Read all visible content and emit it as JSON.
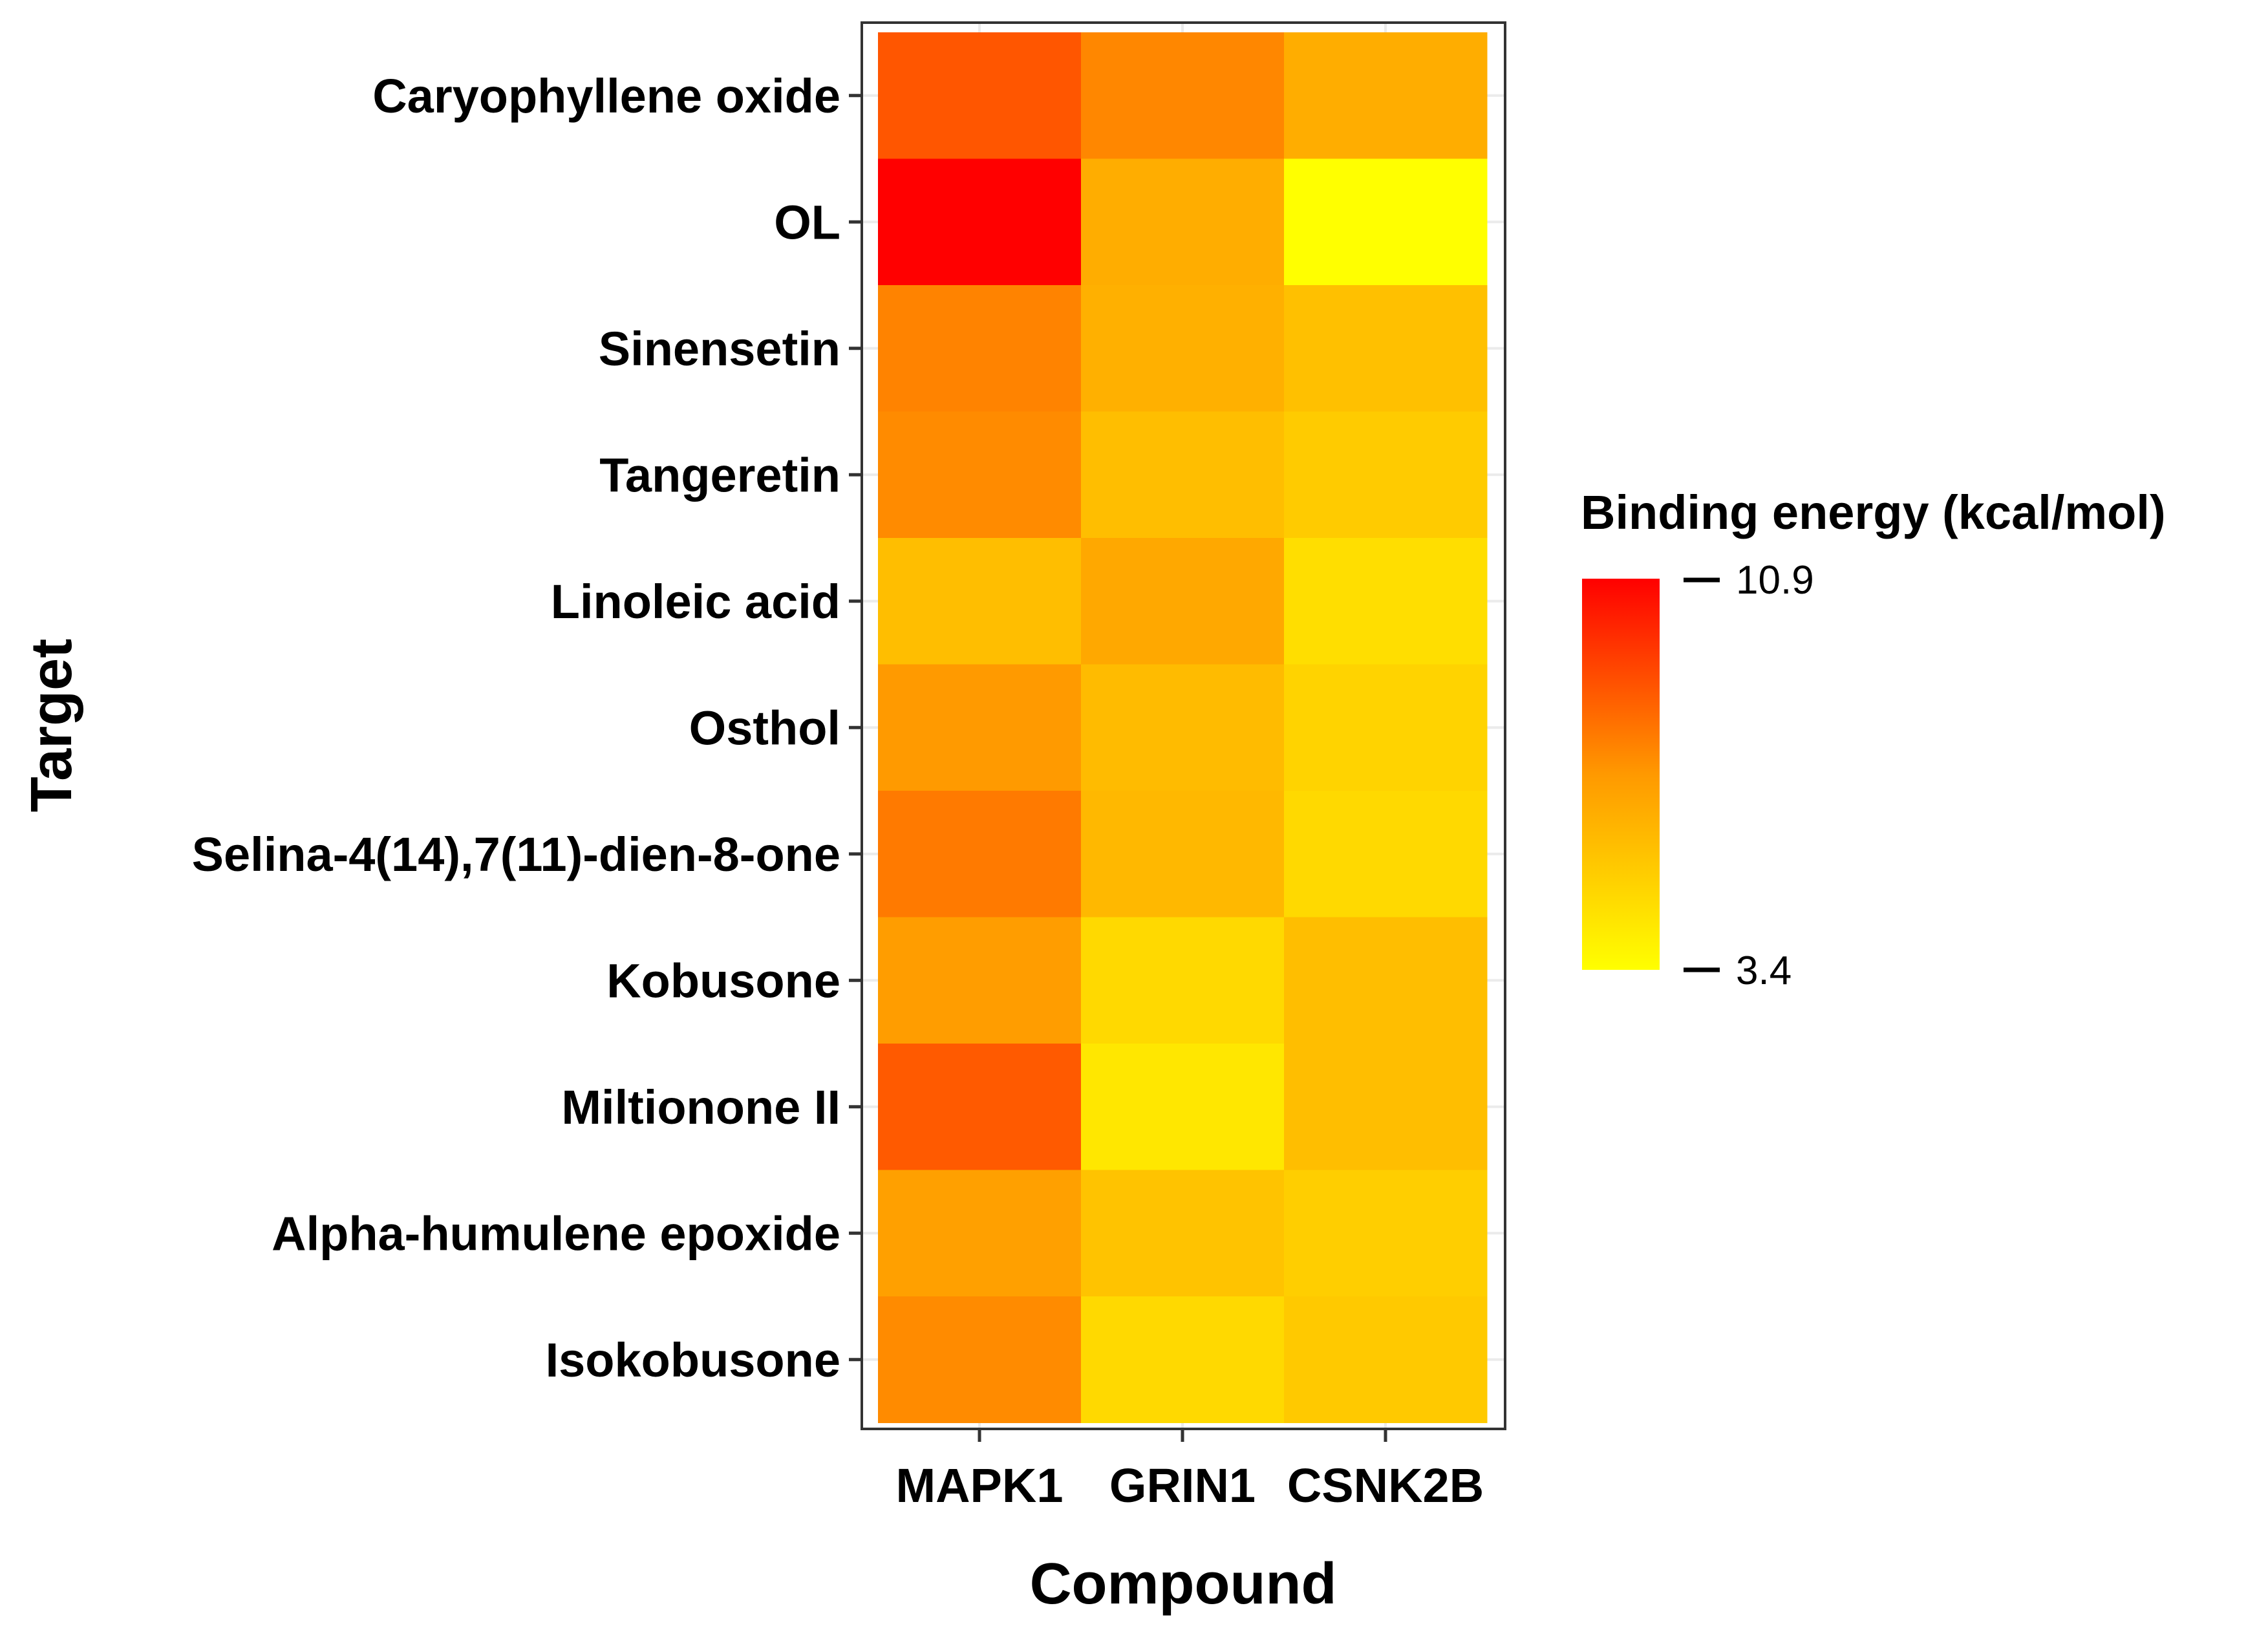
{
  "chart_data": {
    "type": "heatmap",
    "xlabel": "Compound",
    "ylabel": "Target",
    "categories_x": [
      "MAPK1",
      "GRIN1",
      "CSNK2B"
    ],
    "categories_y": [
      "Caryophyllene oxide",
      "OL",
      "Sinensetin",
      "Tangeretin",
      "Linoleic acid",
      "Osthol",
      "Selina-4(14),7(11)-dien-8-one",
      "Kobusone",
      "Miltionone II",
      "Alpha-humulene epoxide",
      "Isokobusone"
    ],
    "values": [
      [
        8.8,
        7.6,
        6.4
      ],
      [
        10.9,
        6.4,
        3.4
      ],
      [
        7.7,
        6.3,
        5.7
      ],
      [
        7.5,
        5.8,
        5.3
      ],
      [
        5.8,
        6.6,
        4.6
      ],
      [
        7.1,
        5.9,
        5.0
      ],
      [
        7.9,
        6.0,
        4.8
      ],
      [
        7.0,
        4.8,
        5.8
      ],
      [
        8.7,
        4.3,
        5.8
      ],
      [
        6.9,
        5.6,
        5.2
      ],
      [
        7.5,
        4.8,
        5.4
      ]
    ],
    "legend": {
      "title": "Binding energy (kcal/mol)",
      "max_label": "10.9",
      "min_label": "3.4",
      "max": 10.9,
      "min": 3.4,
      "color_high": "#ff0000",
      "color_low": "#ffff00"
    },
    "grid": true,
    "legend_position": "right"
  }
}
